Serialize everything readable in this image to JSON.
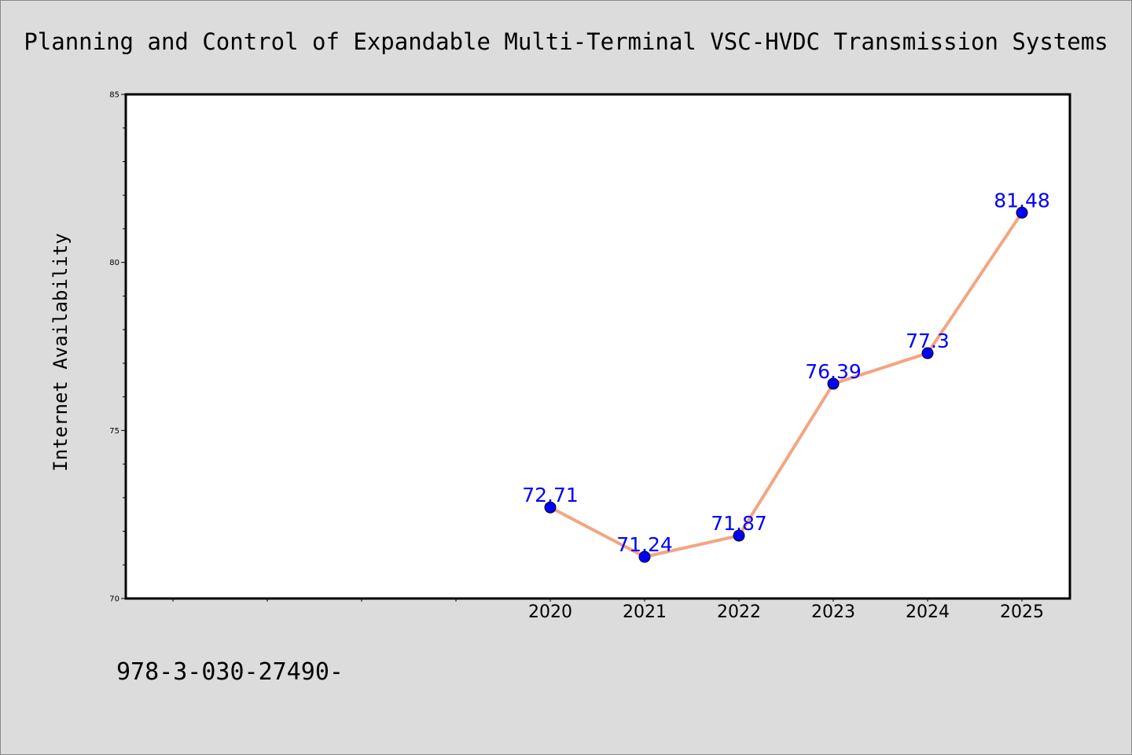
{
  "chart_data": {
    "type": "line",
    "title": "Planning and Control of Expandable Multi-Terminal VSC-HVDC Transmission Systems",
    "xlabel": "",
    "ylabel": "Internet Availability",
    "x": [
      "2020",
      "2021",
      "2022",
      "2023",
      "2024",
      "2025"
    ],
    "values": [
      72.71,
      71.24,
      71.87,
      76.39,
      77.3,
      81.48
    ],
    "data_labels": [
      "72.71",
      "71.24",
      "71.87",
      "76.39",
      "77.3",
      "81.48"
    ],
    "yticks": [
      "70",
      "75",
      "80",
      "85"
    ],
    "ylim": [
      70,
      85
    ],
    "grid": false,
    "legend": "none",
    "line_color": "#f4a582",
    "marker_color": "#0000ff",
    "label_color": "#0000ff"
  },
  "footer_text": "978-3-030-27490-"
}
